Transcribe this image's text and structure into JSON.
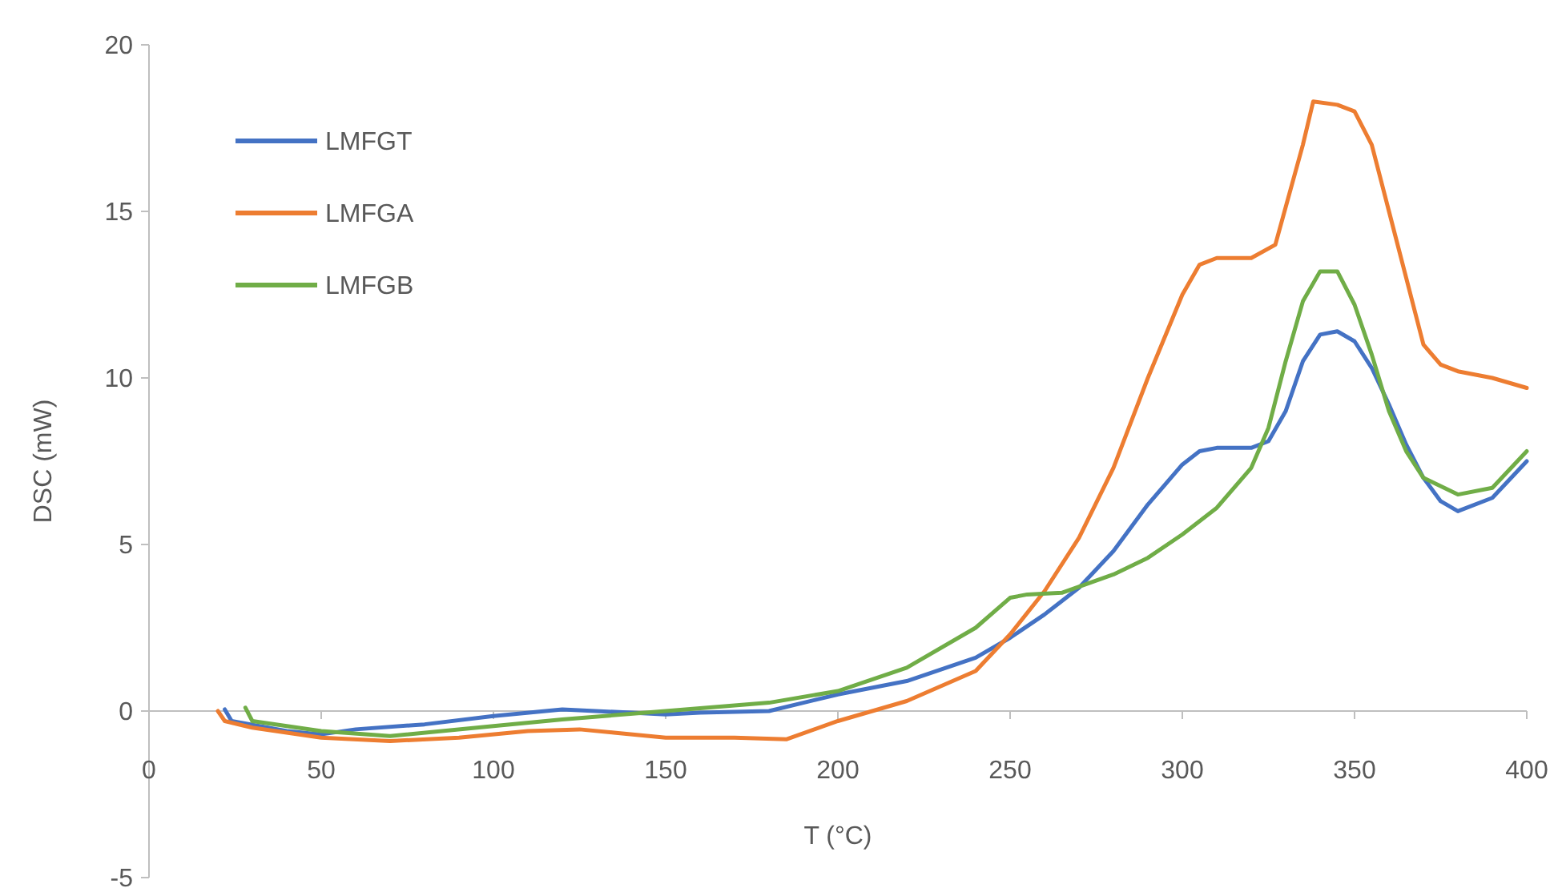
{
  "chart_data": {
    "type": "line",
    "xlabel": "T (°C)",
    "ylabel": "DSC (mW)",
    "xlim": [
      0,
      400
    ],
    "xticks": [
      0,
      50,
      100,
      150,
      200,
      250,
      300,
      350,
      400
    ],
    "ylim": [
      -5,
      20
    ],
    "yticks": [
      -5,
      0,
      5,
      10,
      15,
      20
    ],
    "grid": false,
    "legend": "top left",
    "marker": "none",
    "line_style": "solid",
    "series": [
      {
        "name": "LMFGT",
        "color": "#4472c4",
        "x": [
          22,
          24,
          40,
          50,
          60,
          80,
          100,
          120,
          140,
          150,
          160,
          180,
          190,
          200,
          220,
          240,
          250,
          260,
          270,
          280,
          290,
          300,
          305,
          310,
          320,
          325,
          330,
          335,
          340,
          345,
          350,
          355,
          360,
          365,
          370,
          375,
          380,
          390,
          400
        ],
        "values": [
          0.05,
          -0.3,
          -0.6,
          -0.7,
          -0.55,
          -0.4,
          -0.15,
          0.05,
          -0.05,
          -0.1,
          -0.05,
          0,
          0.25,
          0.5,
          0.9,
          1.6,
          2.2,
          2.9,
          3.7,
          4.8,
          6.2,
          7.4,
          7.8,
          7.9,
          7.9,
          8.1,
          9,
          10.5,
          11.3,
          11.4,
          11.1,
          10.3,
          9.2,
          8,
          7,
          6.3,
          6,
          6.4,
          7.5
        ]
      },
      {
        "name": "LMFGA",
        "color": "#ed7d31",
        "x": [
          20,
          22,
          30,
          50,
          70,
          90,
          110,
          125,
          135,
          150,
          170,
          185,
          200,
          220,
          240,
          250,
          260,
          270,
          280,
          290,
          300,
          305,
          310,
          320,
          327,
          335,
          338,
          345,
          350,
          355,
          360,
          365,
          370,
          375,
          380,
          390,
          400
        ],
        "values": [
          0,
          -0.3,
          -0.5,
          -0.8,
          -0.9,
          -0.8,
          -0.6,
          -0.55,
          -0.65,
          -0.8,
          -0.8,
          -0.85,
          -0.3,
          0.3,
          1.2,
          2.3,
          3.6,
          5.2,
          7.3,
          10,
          12.5,
          13.4,
          13.6,
          13.6,
          14,
          17,
          18.3,
          18.2,
          18,
          17,
          15,
          13,
          11,
          10.4,
          10.2,
          10,
          9.7
        ]
      },
      {
        "name": "LMFGB",
        "color": "#70ad47",
        "x": [
          28,
          30,
          50,
          70,
          100,
          120,
          150,
          180,
          200,
          220,
          240,
          250,
          255,
          265,
          280,
          290,
          300,
          310,
          320,
          325,
          330,
          335,
          340,
          345,
          350,
          355,
          360,
          365,
          370,
          380,
          390,
          400
        ],
        "values": [
          0.1,
          -0.3,
          -0.6,
          -0.75,
          -0.45,
          -0.25,
          0,
          0.25,
          0.6,
          1.3,
          2.5,
          3.4,
          3.5,
          3.55,
          4.1,
          4.6,
          5.3,
          6.1,
          7.3,
          8.5,
          10.5,
          12.3,
          13.2,
          13.2,
          12.2,
          10.7,
          9,
          7.8,
          7,
          6.5,
          6.7,
          7.8
        ]
      }
    ]
  }
}
